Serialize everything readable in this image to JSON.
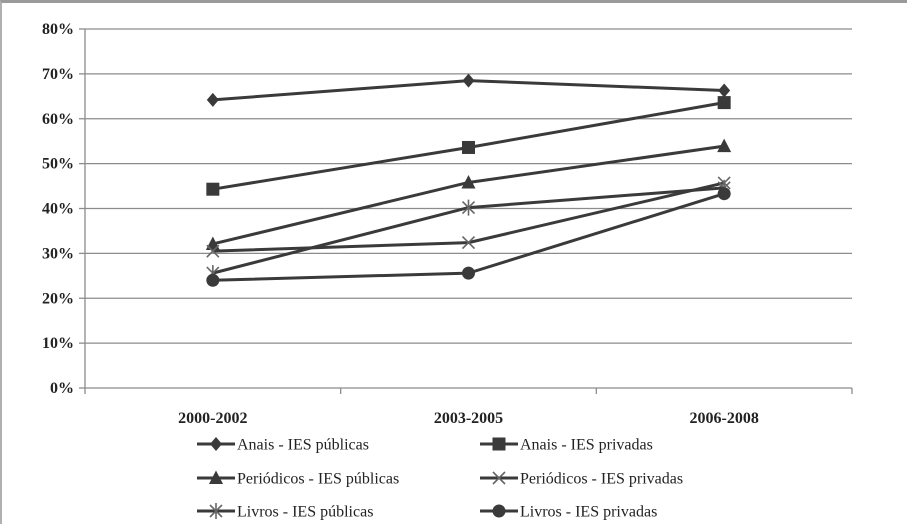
{
  "chart_data": {
    "type": "line",
    "categories": [
      "2000-2002",
      "2003-2005",
      "2006-2008"
    ],
    "y_ticks": [
      "0%",
      "10%",
      "20%",
      "30%",
      "40%",
      "50%",
      "60%",
      "70%",
      "80%"
    ],
    "ylim": [
      0,
      80
    ],
    "grid": true,
    "legend_position": "bottom",
    "series": [
      {
        "name": "Anais - IES públicas",
        "marker": "diamond",
        "values": [
          64.2,
          68.5,
          66.3
        ]
      },
      {
        "name": "Anais - IES privadas",
        "marker": "square",
        "values": [
          44.3,
          53.6,
          63.6
        ]
      },
      {
        "name": "Periódicos - IES públicas",
        "marker": "triangle",
        "values": [
          32.1,
          45.8,
          53.9
        ]
      },
      {
        "name": "Periódicos - IES privadas",
        "marker": "cross",
        "values": [
          30.5,
          32.4,
          45.7
        ]
      },
      {
        "name": "Livros - IES públicas",
        "marker": "star",
        "values": [
          25.6,
          40.2,
          44.6
        ]
      },
      {
        "name": "Livros - IES privadas",
        "marker": "circle",
        "values": [
          24.0,
          25.6,
          43.3
        ]
      }
    ],
    "colors": {
      "line": "#3a3a3a",
      "grid": "#8c8c8c",
      "axis": "#8c8c8c"
    }
  }
}
